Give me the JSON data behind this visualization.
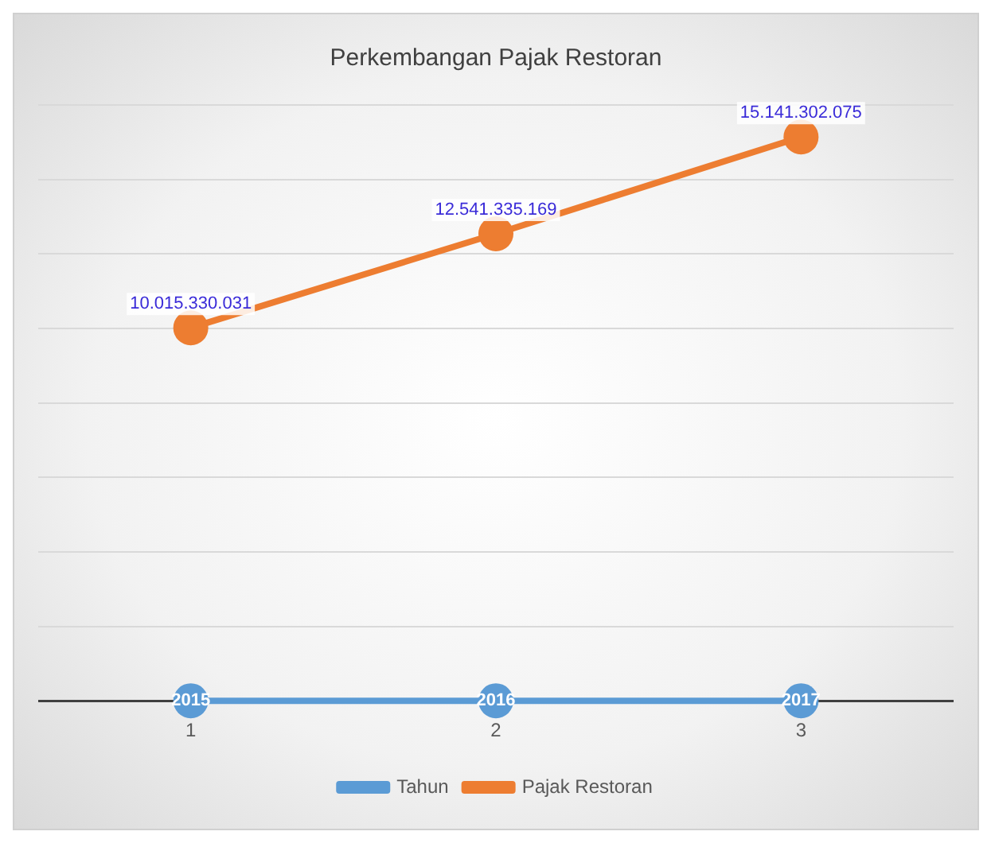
{
  "chart_data": {
    "type": "line",
    "title": "Perkembangan Pajak Restoran",
    "categories": [
      "1",
      "2",
      "3"
    ],
    "series": [
      {
        "name": "Tahun",
        "color": "#5b9bd5",
        "values": [
          2015,
          2016,
          2017
        ],
        "value_labels": [
          "2015",
          "2016",
          "2017"
        ]
      },
      {
        "name": "Pajak Restoran",
        "color": "#ed7d31",
        "values": [
          10015330031,
          12541335169,
          15141302075
        ],
        "value_labels": [
          "10.015.330.031",
          "12.541.335.169",
          "15.141.302.075"
        ]
      }
    ],
    "ylim": [
      0,
      16000000000
    ],
    "yticks": [
      {
        "value": 0,
        "label": null
      },
      {
        "value": 2000000000,
        "label": null
      },
      {
        "value": 4000000000,
        "label": null
      },
      {
        "value": 6000000000,
        "label": null
      },
      {
        "value": 8000000000,
        "label": null
      },
      {
        "value": 10000000000,
        "label": null
      },
      {
        "value": 12000000000,
        "label": null
      },
      {
        "value": 14000000000,
        "label": null
      },
      {
        "value": 16000000000,
        "label": null
      }
    ],
    "tick_labels": "x",
    "grid": "y",
    "legend": "bottom",
    "marker": "circle"
  }
}
